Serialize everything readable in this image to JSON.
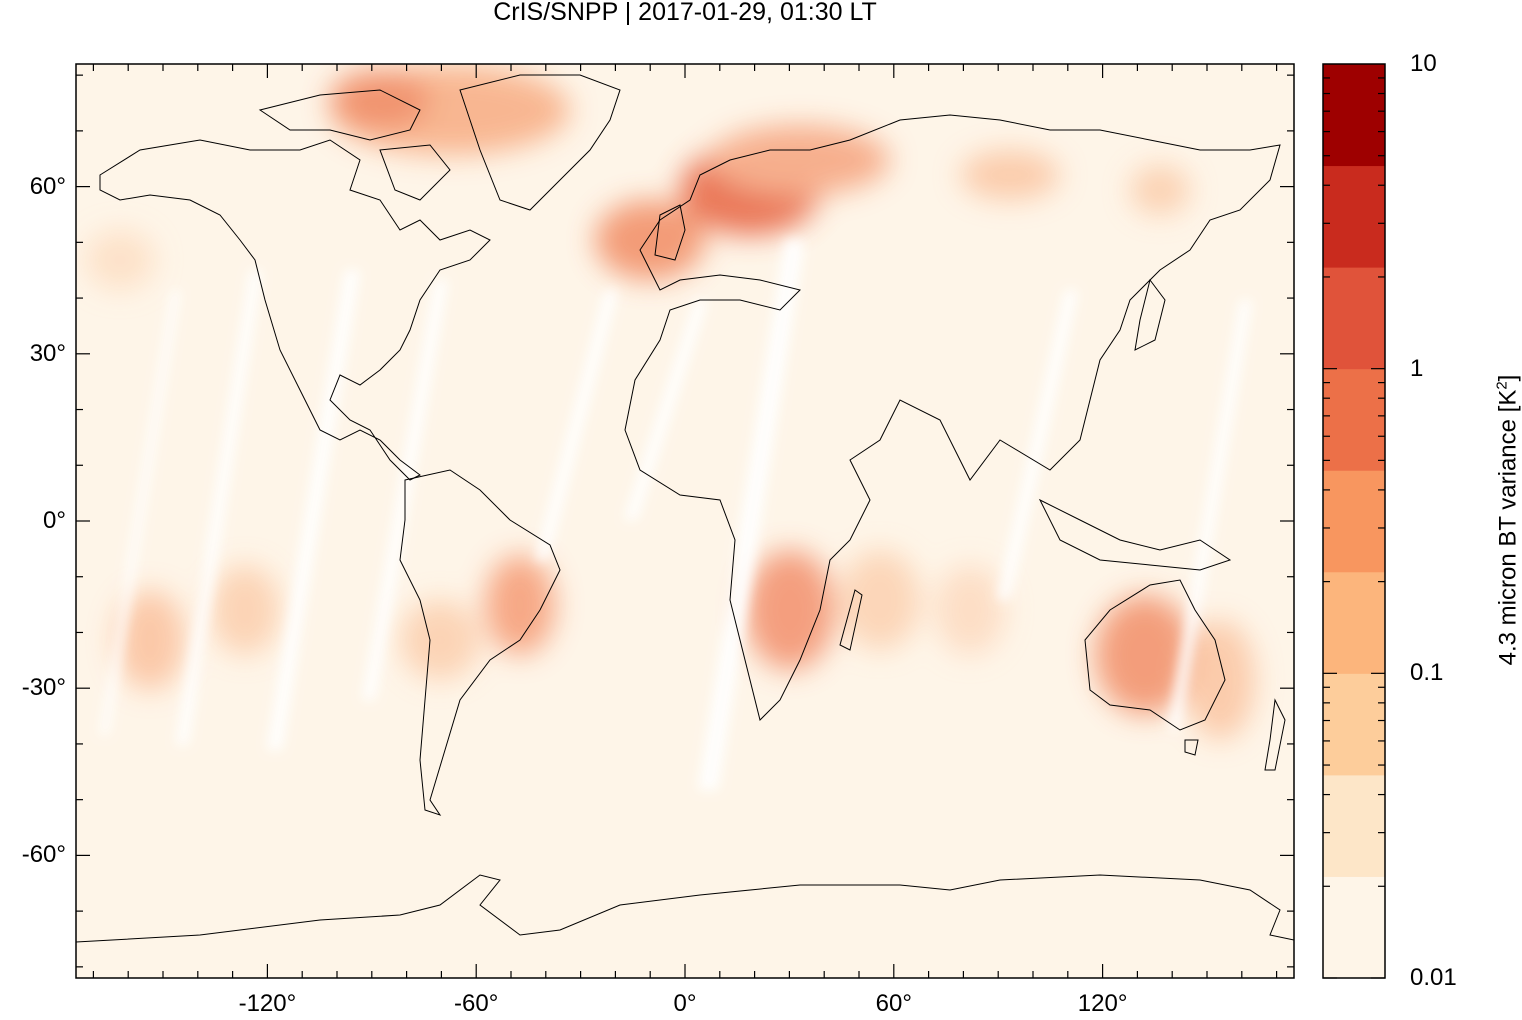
{
  "title": "CrIS/SNPP | 2017-01-29, 01:30 LT",
  "map": {
    "projection": "equirectangular",
    "lon_range": [
      -175,
      175
    ],
    "lat_range": [
      -82,
      82
    ],
    "x_ticks": [
      {
        "lon": -120,
        "label": "-120°"
      },
      {
        "lon": -60,
        "label": "-60°"
      },
      {
        "lon": 0,
        "label": "0°"
      },
      {
        "lon": 60,
        "label": "60°"
      },
      {
        "lon": 120,
        "label": "120°"
      }
    ],
    "y_ticks": [
      {
        "lat": 60,
        "label": "60°"
      },
      {
        "lat": 30,
        "label": "30°"
      },
      {
        "lat": 0,
        "label": "0°"
      },
      {
        "lat": -30,
        "label": "-30°"
      },
      {
        "lat": -60,
        "label": "-60°"
      }
    ],
    "background_color": "#fef5e8"
  },
  "colorbar": {
    "title_main": "4.3 micron BT variance [K",
    "title_sup": "2",
    "title_end": "]",
    "scale": "log",
    "range": [
      0.01,
      10
    ],
    "tick_labels": [
      {
        "value": 10,
        "label": "10"
      },
      {
        "value": 1,
        "label": "1"
      },
      {
        "value": 0.1,
        "label": "0.1"
      },
      {
        "value": 0.01,
        "label": "0.01"
      }
    ],
    "colors": [
      "#fef5e8",
      "#fde6c8",
      "#fdcd9b",
      "#fcb57c",
      "#f8965f",
      "#ec7048",
      "#e0533a",
      "#c92b1e",
      "#9e0000"
    ]
  },
  "chart_data": {
    "type": "heatmap",
    "title": "CrIS/SNPP | 2017-01-29, 01:30 LT",
    "colorbar_label": "4.3 micron BT variance [K2]",
    "regions": [
      {
        "lat": 76,
        "lon": -50,
        "value": 0.5
      },
      {
        "lat": 62,
        "lon": 15,
        "value": 1.2
      },
      {
        "lat": 56,
        "lon": -5,
        "value": 0.6
      },
      {
        "lat": 62,
        "lon": 50,
        "value": 0.15
      },
      {
        "lat": -22,
        "lon": -45,
        "value": 0.4
      },
      {
        "lat": -22,
        "lon": 28,
        "value": 0.5
      },
      {
        "lat": -27,
        "lon": 130,
        "value": 0.5
      },
      {
        "lat": -25,
        "lon": -150,
        "value": 0.2
      }
    ]
  }
}
